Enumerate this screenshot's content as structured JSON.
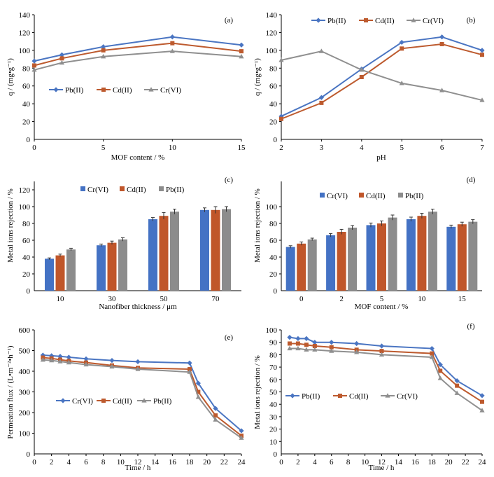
{
  "colors": {
    "blue": "#4472c4",
    "orange": "#c0562a",
    "gray": "#8c8c8c",
    "axis": "#000000",
    "line_blue": "#4a75c2",
    "line_orange": "#bd5a2e",
    "line_gray": "#8f8f8f"
  },
  "chart_data": [
    {
      "panel": "a",
      "panel_label": "(a)",
      "type": "line",
      "x": [
        0,
        2,
        5,
        10,
        15
      ],
      "series": [
        {
          "name": "Pb(II)",
          "values": [
            88,
            95,
            104,
            115,
            106
          ],
          "color": "#4a75c2",
          "marker": "diamond"
        },
        {
          "name": "Cd(II)",
          "values": [
            83,
            91,
            100,
            108,
            99
          ],
          "color": "#bd5a2e",
          "marker": "square"
        },
        {
          "name": "Cr(VI)",
          "values": [
            78,
            86,
            93,
            99,
            93
          ],
          "color": "#8f8f8f",
          "marker": "triangle"
        }
      ],
      "xlabel": "MOF content / %",
      "ylabel": "q / (mg•g⁻¹)",
      "xlim": [
        0,
        15
      ],
      "ylim": [
        0,
        140
      ],
      "xticks": [
        0,
        5,
        10,
        15
      ],
      "yticks": [
        20,
        40,
        60,
        80,
        100,
        120,
        140
      ],
      "grid": false,
      "legend": "lower-left, horizontal"
    },
    {
      "panel": "b",
      "panel_label": "(b)",
      "type": "line",
      "x": [
        2,
        3,
        4,
        5,
        6,
        7
      ],
      "series": [
        {
          "name": "Pb(II)",
          "values": [
            26,
            47,
            79,
            109,
            115,
            100
          ],
          "color": "#4a75c2",
          "marker": "diamond"
        },
        {
          "name": "Cd(II)",
          "values": [
            23,
            41,
            70,
            102,
            107,
            95
          ],
          "color": "#bd5a2e",
          "marker": "square"
        },
        {
          "name": "Cr(VI)",
          "values": [
            89,
            99,
            78,
            63,
            55,
            44
          ],
          "color": "#8f8f8f",
          "marker": "triangle"
        }
      ],
      "xlabel": "pH",
      "ylabel": "q / (mg•g⁻¹)",
      "xlim": [
        2,
        7
      ],
      "ylim": [
        0,
        140
      ],
      "xticks": [
        2,
        3,
        4,
        5,
        6,
        7
      ],
      "yticks": [
        20,
        40,
        60,
        80,
        100,
        120,
        140
      ],
      "grid": false,
      "legend": "top, horizontal"
    },
    {
      "panel": "c",
      "panel_label": "(c)",
      "type": "bar",
      "categories": [
        "10",
        "30",
        "50",
        "70"
      ],
      "series": [
        {
          "name": "Cr(VI)",
          "values": [
            38,
            54,
            85,
            96
          ],
          "errors": [
            1,
            1.5,
            2,
            2.5
          ],
          "color": "#4472c4"
        },
        {
          "name": "Cd(II)",
          "values": [
            42,
            57,
            89,
            96
          ],
          "errors": [
            1.5,
            2,
            4,
            4
          ],
          "color": "#c0562a"
        },
        {
          "name": "Pb(II)",
          "values": [
            49,
            61,
            94,
            97
          ],
          "errors": [
            1.5,
            2,
            3,
            3
          ],
          "color": "#8c8c8c"
        }
      ],
      "xlabel": "Nanofiber thickness / μm",
      "ylabel": "Metal ions rejection / %",
      "ylim": [
        0,
        130
      ],
      "yticks": [
        20,
        40,
        60,
        80,
        100,
        120
      ],
      "grid": false,
      "legend": "top-right, horizontal"
    },
    {
      "panel": "d",
      "panel_label": "(d)",
      "type": "bar",
      "categories": [
        "0",
        "2",
        "5",
        "10",
        "15"
      ],
      "series": [
        {
          "name": "Cr(VI)",
          "values": [
            52,
            66,
            78,
            85,
            76
          ],
          "errors": [
            1.5,
            2,
            2.5,
            2.5,
            2
          ],
          "color": "#4472c4"
        },
        {
          "name": "Cd(II)",
          "values": [
            56,
            70,
            80,
            89,
            79
          ],
          "errors": [
            2,
            3,
            3,
            3,
            2.5
          ],
          "color": "#c0562a"
        },
        {
          "name": "Pb(II)",
          "values": [
            61,
            75,
            87,
            94,
            82
          ],
          "errors": [
            1.5,
            2.5,
            3,
            3,
            2.5
          ],
          "color": "#8c8c8c"
        }
      ],
      "xlabel": "MOF content / %",
      "ylabel": "Metal ions rejection / %",
      "ylim": [
        0,
        130
      ],
      "yticks": [
        20,
        40,
        60,
        80,
        100
      ],
      "grid": false,
      "legend": "top, horizontal"
    },
    {
      "panel": "e",
      "panel_label": "(e)",
      "type": "line",
      "x": [
        1,
        2,
        3,
        4,
        6,
        9,
        12,
        18,
        19,
        21,
        24
      ],
      "series": [
        {
          "name": "Cr(VI)",
          "values": [
            478,
            475,
            472,
            468,
            460,
            452,
            446,
            440,
            342,
            220,
            112
          ],
          "color": "#4a75c2",
          "marker": "diamond"
        },
        {
          "name": "Cd(II)",
          "values": [
            466,
            462,
            456,
            450,
            442,
            428,
            416,
            410,
            300,
            186,
            88
          ],
          "color": "#bd5a2e",
          "marker": "square"
        },
        {
          "name": "Pb(II)",
          "values": [
            455,
            452,
            447,
            442,
            432,
            422,
            410,
            396,
            275,
            165,
            77
          ],
          "color": "#8f8f8f",
          "marker": "triangle"
        }
      ],
      "xlabel": "Time / h",
      "ylabel": "Permeation flux / (L•m⁻²•h⁻¹)",
      "xlim": [
        0,
        24
      ],
      "ylim": [
        0,
        600
      ],
      "xticks": [
        0,
        2,
        4,
        6,
        8,
        10,
        12,
        14,
        16,
        18,
        20,
        22,
        24
      ],
      "yticks": [
        100,
        200,
        300,
        400,
        500,
        600
      ],
      "grid": false,
      "legend": "middle, horizontal"
    },
    {
      "panel": "f",
      "panel_label": "(f)",
      "type": "line",
      "x": [
        1,
        2,
        3,
        4,
        6,
        9,
        12,
        18,
        19,
        21,
        24
      ],
      "series": [
        {
          "name": "Pb(II)",
          "values": [
            94,
            93,
            93,
            90,
            90,
            89,
            87,
            85,
            72,
            59,
            47
          ],
          "color": "#4a75c2",
          "marker": "diamond"
        },
        {
          "name": "Cd(II)",
          "values": [
            89,
            89,
            88,
            87,
            86,
            84,
            83,
            81,
            67,
            55,
            42
          ],
          "color": "#bd5a2e",
          "marker": "square"
        },
        {
          "name": "Cr(VI)",
          "values": [
            85,
            85,
            84,
            84,
            83,
            82,
            80,
            78,
            61,
            49,
            35
          ],
          "color": "#8f8f8f",
          "marker": "triangle"
        }
      ],
      "xlabel": "Time / h",
      "ylabel": "Metal ions rejection / %",
      "xlim": [
        0,
        24
      ],
      "ylim": [
        0,
        100
      ],
      "xticks": [
        0,
        2,
        4,
        6,
        8,
        10,
        12,
        14,
        16,
        18,
        20,
        22,
        24
      ],
      "yticks": [
        10,
        20,
        30,
        40,
        50,
        60,
        70,
        80,
        90,
        100
      ],
      "grid": false,
      "legend": "middle, horizontal"
    }
  ]
}
